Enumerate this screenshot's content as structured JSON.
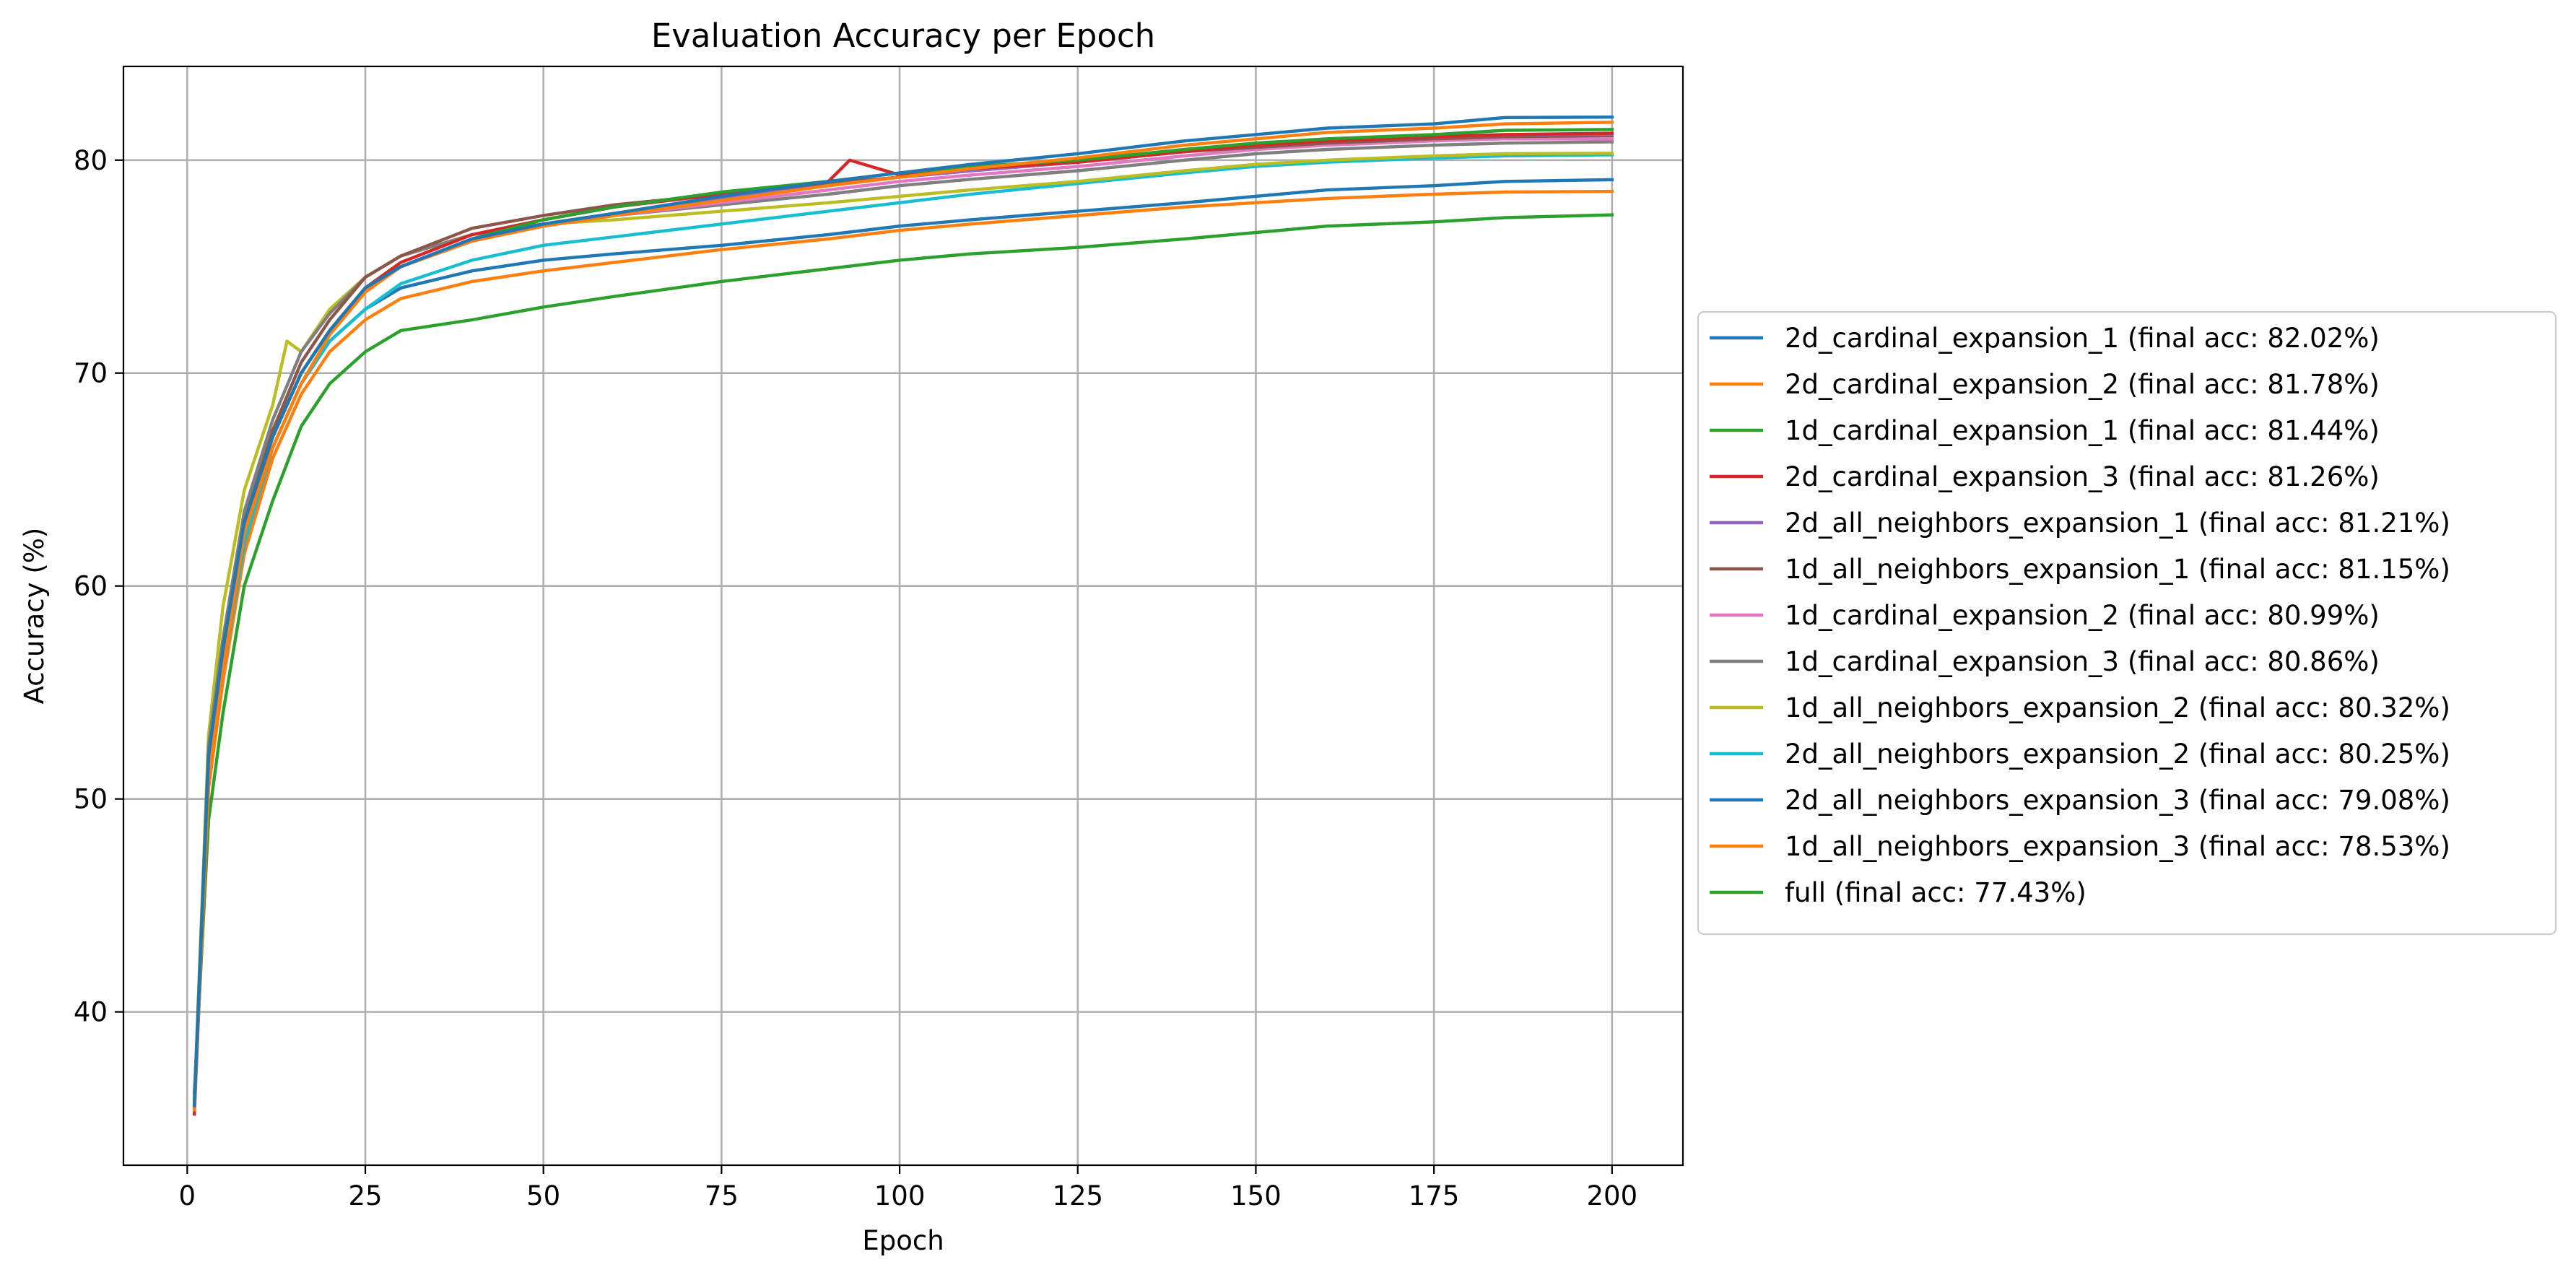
{
  "chart_data": {
    "type": "line",
    "title": "Evaluation Accuracy per Epoch",
    "xlabel": "Epoch",
    "ylabel": "Accuracy (%)",
    "xlim": [
      -8.95,
      209.95
    ],
    "ylim": [
      32.8,
      84.4
    ],
    "xticks": [
      0,
      25,
      50,
      75,
      100,
      125,
      150,
      175,
      200
    ],
    "yticks": [
      40,
      50,
      60,
      70,
      80
    ],
    "grid": true,
    "legend_position": "outside-right",
    "series": [
      {
        "name": "2d_cardinal_expansion_1 (final acc: 82.02%)",
        "color": "#1f77b4",
        "points": [
          [
            1,
            35.6
          ],
          [
            3,
            52
          ],
          [
            5,
            57
          ],
          [
            8,
            63
          ],
          [
            12,
            67
          ],
          [
            16,
            70
          ],
          [
            20,
            72
          ],
          [
            25,
            74
          ],
          [
            30,
            75
          ],
          [
            40,
            76.3
          ],
          [
            50,
            77
          ],
          [
            60,
            77.5
          ],
          [
            75,
            78.3
          ],
          [
            90,
            79
          ],
          [
            100,
            79.4
          ],
          [
            110,
            79.8
          ],
          [
            125,
            80.3
          ],
          [
            140,
            80.9
          ],
          [
            150,
            81.2
          ],
          [
            160,
            81.5
          ],
          [
            175,
            81.7
          ],
          [
            185,
            82
          ],
          [
            200,
            82.02
          ]
        ]
      },
      {
        "name": "2d_cardinal_expansion_2 (final acc: 81.78%)",
        "color": "#ff7f0e",
        "points": [
          [
            1,
            35.4
          ],
          [
            3,
            51
          ],
          [
            5,
            56
          ],
          [
            8,
            62.5
          ],
          [
            12,
            66.5
          ],
          [
            16,
            69.5
          ],
          [
            20,
            71.8
          ],
          [
            25,
            73.8
          ],
          [
            30,
            75
          ],
          [
            40,
            76.2
          ],
          [
            50,
            76.9
          ],
          [
            60,
            77.4
          ],
          [
            75,
            78.1
          ],
          [
            90,
            78.8
          ],
          [
            100,
            79.2
          ],
          [
            110,
            79.6
          ],
          [
            125,
            80.1
          ],
          [
            140,
            80.7
          ],
          [
            150,
            81
          ],
          [
            160,
            81.3
          ],
          [
            175,
            81.5
          ],
          [
            185,
            81.7
          ],
          [
            200,
            81.78
          ]
        ]
      },
      {
        "name": "1d_cardinal_expansion_1 (final acc: 81.44%)",
        "color": "#2ca02c",
        "points": [
          [
            1,
            35.8
          ],
          [
            3,
            52
          ],
          [
            5,
            57
          ],
          [
            8,
            63
          ],
          [
            12,
            67
          ],
          [
            16,
            70
          ],
          [
            20,
            72
          ],
          [
            25,
            74
          ],
          [
            30,
            75
          ],
          [
            40,
            76.3
          ],
          [
            50,
            77.2
          ],
          [
            60,
            77.8
          ],
          [
            75,
            78.5
          ],
          [
            90,
            79
          ],
          [
            100,
            79.4
          ],
          [
            110,
            79.7
          ],
          [
            125,
            80
          ],
          [
            140,
            80.5
          ],
          [
            150,
            80.8
          ],
          [
            160,
            81
          ],
          [
            175,
            81.2
          ],
          [
            185,
            81.4
          ],
          [
            200,
            81.44
          ]
        ]
      },
      {
        "name": "2d_cardinal_expansion_3 (final acc: 81.26%)",
        "color": "#d62728",
        "points": [
          [
            1,
            35.2
          ],
          [
            3,
            51
          ],
          [
            5,
            56.5
          ],
          [
            8,
            62.8
          ],
          [
            12,
            67
          ],
          [
            16,
            70
          ],
          [
            20,
            72
          ],
          [
            25,
            74
          ],
          [
            30,
            75.2
          ],
          [
            40,
            76.5
          ],
          [
            50,
            77.2
          ],
          [
            60,
            77.8
          ],
          [
            75,
            78.4
          ],
          [
            90,
            79
          ],
          [
            93,
            80
          ],
          [
            100,
            79.3
          ],
          [
            110,
            79.6
          ],
          [
            125,
            79.9
          ],
          [
            140,
            80.4
          ],
          [
            150,
            80.7
          ],
          [
            160,
            80.9
          ],
          [
            175,
            81.1
          ],
          [
            185,
            81.2
          ],
          [
            200,
            81.26
          ]
        ]
      },
      {
        "name": "2d_all_neighbors_expansion_1 (final acc: 81.21%)",
        "color": "#9467bd",
        "points": [
          [
            1,
            35.5
          ],
          [
            3,
            51.5
          ],
          [
            5,
            56.5
          ],
          [
            8,
            62.8
          ],
          [
            12,
            67
          ],
          [
            16,
            70
          ],
          [
            20,
            72
          ],
          [
            25,
            74
          ],
          [
            30,
            75
          ],
          [
            40,
            76.3
          ],
          [
            50,
            77
          ],
          [
            60,
            77.5
          ],
          [
            75,
            78.2
          ],
          [
            90,
            78.8
          ],
          [
            100,
            79.2
          ],
          [
            110,
            79.5
          ],
          [
            125,
            79.9
          ],
          [
            140,
            80.4
          ],
          [
            150,
            80.7
          ],
          [
            160,
            80.9
          ],
          [
            175,
            81.1
          ],
          [
            185,
            81.2
          ],
          [
            200,
            81.21
          ]
        ]
      },
      {
        "name": "1d_all_neighbors_expansion_1 (final acc: 81.15%)",
        "color": "#8c564b",
        "points": [
          [
            1,
            35.6
          ],
          [
            3,
            52
          ],
          [
            5,
            57
          ],
          [
            8,
            63
          ],
          [
            12,
            67.3
          ],
          [
            16,
            70.5
          ],
          [
            20,
            72.5
          ],
          [
            25,
            74.5
          ],
          [
            30,
            75.5
          ],
          [
            40,
            76.8
          ],
          [
            50,
            77.4
          ],
          [
            60,
            77.9
          ],
          [
            75,
            78.4
          ],
          [
            90,
            78.9
          ],
          [
            100,
            79.2
          ],
          [
            110,
            79.5
          ],
          [
            125,
            79.9
          ],
          [
            140,
            80.4
          ],
          [
            150,
            80.6
          ],
          [
            160,
            80.8
          ],
          [
            175,
            81
          ],
          [
            185,
            81.1
          ],
          [
            200,
            81.15
          ]
        ]
      },
      {
        "name": "1d_cardinal_expansion_2 (final acc: 80.99%)",
        "color": "#e377c2",
        "points": [
          [
            1,
            35.6
          ],
          [
            3,
            51.5
          ],
          [
            5,
            56.5
          ],
          [
            8,
            62.8
          ],
          [
            12,
            67
          ],
          [
            16,
            70
          ],
          [
            20,
            72
          ],
          [
            25,
            74
          ],
          [
            30,
            75
          ],
          [
            40,
            76.2
          ],
          [
            50,
            76.9
          ],
          [
            60,
            77.4
          ],
          [
            75,
            78
          ],
          [
            90,
            78.6
          ],
          [
            100,
            79
          ],
          [
            110,
            79.3
          ],
          [
            125,
            79.7
          ],
          [
            140,
            80.2
          ],
          [
            150,
            80.5
          ],
          [
            160,
            80.7
          ],
          [
            175,
            80.9
          ],
          [
            185,
            81
          ],
          [
            200,
            80.99
          ]
        ]
      },
      {
        "name": "1d_cardinal_expansion_3 (final acc: 80.86%)",
        "color": "#7f7f7f",
        "points": [
          [
            1,
            35.7
          ],
          [
            3,
            52.5
          ],
          [
            5,
            57.5
          ],
          [
            8,
            63.5
          ],
          [
            12,
            67.8
          ],
          [
            16,
            71
          ],
          [
            20,
            72.8
          ],
          [
            25,
            74.5
          ],
          [
            30,
            75.5
          ],
          [
            40,
            76.5
          ],
          [
            50,
            77
          ],
          [
            60,
            77.4
          ],
          [
            75,
            77.9
          ],
          [
            90,
            78.4
          ],
          [
            100,
            78.8
          ],
          [
            110,
            79.1
          ],
          [
            125,
            79.5
          ],
          [
            140,
            80
          ],
          [
            150,
            80.3
          ],
          [
            160,
            80.5
          ],
          [
            175,
            80.7
          ],
          [
            185,
            80.8
          ],
          [
            200,
            80.86
          ]
        ]
      },
      {
        "name": "1d_all_neighbors_expansion_2 (final acc: 80.32%)",
        "color": "#bcbd22",
        "points": [
          [
            1,
            35.8
          ],
          [
            3,
            53
          ],
          [
            5,
            59
          ],
          [
            8,
            64.5
          ],
          [
            12,
            68.5
          ],
          [
            14,
            71.5
          ],
          [
            16,
            71
          ],
          [
            20,
            73
          ],
          [
            25,
            74.5
          ],
          [
            30,
            75.5
          ],
          [
            40,
            76.5
          ],
          [
            50,
            77
          ],
          [
            60,
            77.2
          ],
          [
            75,
            77.6
          ],
          [
            90,
            78
          ],
          [
            100,
            78.3
          ],
          [
            110,
            78.6
          ],
          [
            125,
            79
          ],
          [
            140,
            79.5
          ],
          [
            150,
            79.8
          ],
          [
            160,
            80
          ],
          [
            175,
            80.2
          ],
          [
            185,
            80.3
          ],
          [
            200,
            80.32
          ]
        ]
      },
      {
        "name": "2d_all_neighbors_expansion_2 (final acc: 80.25%)",
        "color": "#17becf",
        "points": [
          [
            1,
            35.9
          ],
          [
            3,
            51.5
          ],
          [
            5,
            56
          ],
          [
            8,
            62
          ],
          [
            12,
            66.5
          ],
          [
            16,
            69.5
          ],
          [
            20,
            71.5
          ],
          [
            25,
            73
          ],
          [
            30,
            74.2
          ],
          [
            40,
            75.3
          ],
          [
            50,
            76
          ],
          [
            60,
            76.4
          ],
          [
            75,
            77
          ],
          [
            90,
            77.6
          ],
          [
            100,
            78
          ],
          [
            110,
            78.4
          ],
          [
            125,
            78.9
          ],
          [
            140,
            79.4
          ],
          [
            150,
            79.7
          ],
          [
            160,
            79.9
          ],
          [
            175,
            80.1
          ],
          [
            185,
            80.2
          ],
          [
            200,
            80.25
          ]
        ]
      },
      {
        "name": "2d_all_neighbors_expansion_3 (final acc: 79.08%)",
        "color": "#1f77b4",
        "points": [
          [
            1,
            35.6
          ],
          [
            3,
            51
          ],
          [
            5,
            56
          ],
          [
            8,
            62
          ],
          [
            12,
            66.5
          ],
          [
            16,
            69.5
          ],
          [
            20,
            71.5
          ],
          [
            25,
            73
          ],
          [
            30,
            74
          ],
          [
            40,
            74.8
          ],
          [
            50,
            75.3
          ],
          [
            60,
            75.6
          ],
          [
            75,
            76
          ],
          [
            90,
            76.5
          ],
          [
            100,
            76.9
          ],
          [
            110,
            77.2
          ],
          [
            125,
            77.6
          ],
          [
            140,
            78
          ],
          [
            150,
            78.3
          ],
          [
            160,
            78.6
          ],
          [
            175,
            78.8
          ],
          [
            185,
            79
          ],
          [
            200,
            79.08
          ]
        ]
      },
      {
        "name": "1d_all_neighbors_expansion_3 (final acc: 78.53%)",
        "color": "#ff7f0e",
        "points": [
          [
            1,
            35.5
          ],
          [
            3,
            50.5
          ],
          [
            5,
            55.5
          ],
          [
            8,
            61.5
          ],
          [
            12,
            66
          ],
          [
            16,
            69
          ],
          [
            20,
            71
          ],
          [
            25,
            72.5
          ],
          [
            30,
            73.5
          ],
          [
            40,
            74.3
          ],
          [
            50,
            74.8
          ],
          [
            60,
            75.2
          ],
          [
            75,
            75.8
          ],
          [
            90,
            76.3
          ],
          [
            100,
            76.7
          ],
          [
            110,
            77
          ],
          [
            125,
            77.4
          ],
          [
            140,
            77.8
          ],
          [
            150,
            78
          ],
          [
            160,
            78.2
          ],
          [
            175,
            78.4
          ],
          [
            185,
            78.5
          ],
          [
            200,
            78.53
          ]
        ]
      },
      {
        "name": "full (final acc: 77.43%)",
        "color": "#2ca02c",
        "points": [
          [
            1,
            36.2
          ],
          [
            3,
            49
          ],
          [
            5,
            54
          ],
          [
            8,
            60
          ],
          [
            12,
            64
          ],
          [
            16,
            67.5
          ],
          [
            20,
            69.5
          ],
          [
            25,
            71
          ],
          [
            30,
            72
          ],
          [
            40,
            72.5
          ],
          [
            50,
            73.1
          ],
          [
            60,
            73.6
          ],
          [
            75,
            74.3
          ],
          [
            90,
            74.9
          ],
          [
            100,
            75.3
          ],
          [
            110,
            75.6
          ],
          [
            125,
            75.9
          ],
          [
            140,
            76.3
          ],
          [
            150,
            76.6
          ],
          [
            160,
            76.9
          ],
          [
            175,
            77.1
          ],
          [
            185,
            77.3
          ],
          [
            200,
            77.43
          ]
        ]
      }
    ]
  }
}
